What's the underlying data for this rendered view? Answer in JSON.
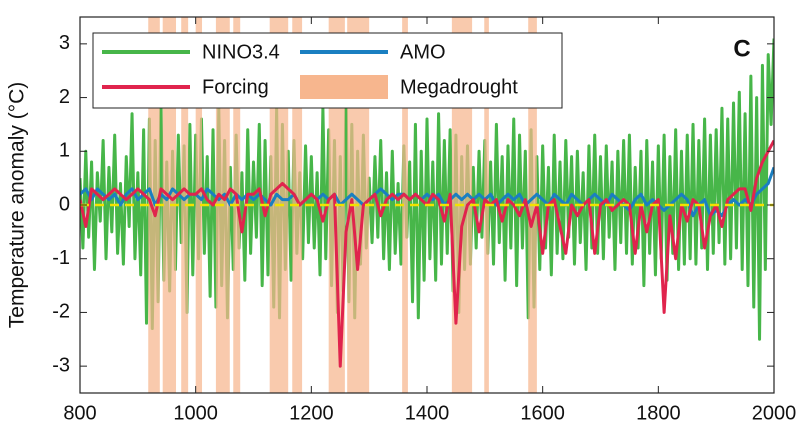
{
  "chart_data": {
    "type": "line",
    "panel_label": "C",
    "ylabel": "Temperature anomaly (°C)",
    "xlim": [
      800,
      2000
    ],
    "xticks": [
      800,
      1000,
      1200,
      1400,
      1600,
      1800,
      2000
    ],
    "ylim": [
      -3.5,
      3.5
    ],
    "yticks": [
      -3,
      -2,
      -1,
      0,
      1,
      2,
      3
    ],
    "hline": {
      "value": 0,
      "color": "#f2e200"
    },
    "shaded_regions": {
      "name": "Megadrought",
      "color": "#f7b68e",
      "spans": [
        [
          918,
          938
        ],
        [
          943,
          966
        ],
        [
          975,
          987
        ],
        [
          1000,
          1011
        ],
        [
          1035,
          1059
        ],
        [
          1065,
          1077
        ],
        [
          1128,
          1160
        ],
        [
          1167,
          1184
        ],
        [
          1230,
          1258
        ],
        [
          1262,
          1300
        ],
        [
          1357,
          1367
        ],
        [
          1443,
          1478
        ],
        [
          1499,
          1507
        ],
        [
          1575,
          1590
        ]
      ]
    },
    "series": [
      {
        "name": "NINO3.4",
        "color": "#47b649",
        "x": [
          800,
          805,
          810,
          815,
          820,
          825,
          830,
          835,
          840,
          845,
          850,
          855,
          860,
          865,
          870,
          875,
          880,
          885,
          890,
          895,
          900,
          905,
          910,
          915,
          920,
          925,
          930,
          935,
          940,
          945,
          950,
          955,
          960,
          965,
          970,
          975,
          980,
          985,
          990,
          995,
          1000,
          1005,
          1010,
          1015,
          1020,
          1025,
          1030,
          1035,
          1040,
          1045,
          1050,
          1055,
          1060,
          1065,
          1070,
          1075,
          1080,
          1085,
          1090,
          1095,
          1100,
          1105,
          1110,
          1115,
          1120,
          1125,
          1130,
          1135,
          1140,
          1145,
          1150,
          1155,
          1160,
          1165,
          1170,
          1175,
          1180,
          1185,
          1190,
          1195,
          1200,
          1205,
          1210,
          1215,
          1220,
          1225,
          1230,
          1235,
          1240,
          1245,
          1250,
          1255,
          1260,
          1265,
          1270,
          1275,
          1280,
          1285,
          1290,
          1295,
          1300,
          1305,
          1310,
          1315,
          1320,
          1325,
          1330,
          1335,
          1340,
          1345,
          1350,
          1355,
          1360,
          1365,
          1370,
          1375,
          1380,
          1385,
          1390,
          1395,
          1400,
          1405,
          1410,
          1415,
          1420,
          1425,
          1430,
          1435,
          1440,
          1445,
          1450,
          1455,
          1460,
          1465,
          1470,
          1475,
          1480,
          1485,
          1490,
          1495,
          1500,
          1505,
          1510,
          1515,
          1520,
          1525,
          1530,
          1535,
          1540,
          1545,
          1550,
          1555,
          1560,
          1565,
          1570,
          1575,
          1580,
          1585,
          1590,
          1595,
          1600,
          1605,
          1610,
          1615,
          1620,
          1625,
          1630,
          1635,
          1640,
          1645,
          1650,
          1655,
          1660,
          1665,
          1670,
          1675,
          1680,
          1685,
          1690,
          1695,
          1700,
          1705,
          1710,
          1715,
          1720,
          1725,
          1730,
          1735,
          1740,
          1745,
          1750,
          1755,
          1760,
          1765,
          1770,
          1775,
          1780,
          1785,
          1790,
          1795,
          1800,
          1805,
          1810,
          1815,
          1820,
          1825,
          1830,
          1835,
          1840,
          1845,
          1850,
          1855,
          1860,
          1865,
          1870,
          1875,
          1880,
          1885,
          1890,
          1895,
          1900,
          1905,
          1910,
          1915,
          1920,
          1925,
          1930,
          1935,
          1940,
          1945,
          1950,
          1955,
          1960,
          1965,
          1970,
          1975,
          1980,
          1985,
          1990,
          1995,
          2000
        ],
        "values": [
          0.5,
          -0.8,
          1.0,
          -0.6,
          0.8,
          -1.2,
          0.6,
          -0.3,
          1.2,
          -1.0,
          0.7,
          -0.5,
          1.3,
          -0.9,
          0.4,
          -1.1,
          0.9,
          -0.4,
          1.7,
          -1.0,
          0.6,
          -1.3,
          1.4,
          -2.2,
          1.6,
          -2.3,
          1.2,
          -1.8,
          1.9,
          -1.4,
          0.8,
          -1.6,
          1.0,
          -1.2,
          1.3,
          -0.7,
          1.1,
          -2.0,
          1.5,
          -1.3,
          1.3,
          -1.0,
          1.6,
          -0.9,
          0.9,
          -1.7,
          1.4,
          -1.9,
          1.8,
          -1.5,
          1.2,
          -2.1,
          0.7,
          -1.2,
          1.3,
          -0.8,
          0.6,
          -1.4,
          1.4,
          -0.9,
          0.8,
          -0.6,
          1.5,
          -1.5,
          1.2,
          -1.3,
          0.9,
          -1.9,
          1.8,
          -2.1,
          1.5,
          -1.2,
          1.0,
          -1.4,
          1.2,
          -0.9,
          0.6,
          -1.0,
          1.1,
          -0.7,
          0.9,
          -0.8,
          0.6,
          -1.3,
          1.8,
          -1.0,
          1.4,
          -1.5,
          1.2,
          -2.0,
          0.9,
          -1.6,
          2.0,
          -1.8,
          1.5,
          -2.1,
          1.0,
          -1.1,
          1.3,
          -0.8,
          0.5,
          -0.7,
          0.9,
          -0.6,
          1.2,
          -1.0,
          0.6,
          -1.2,
          1.0,
          -0.9,
          0.4,
          -1.1,
          1.1,
          -0.6,
          0.8,
          -1.8,
          1.5,
          -2.1,
          1.0,
          -1.4,
          1.6,
          -1.0,
          0.8,
          -1.4,
          1.7,
          -1.1,
          1.2,
          -0.9,
          1.4,
          -1.6,
          1.3,
          -2.0,
          0.9,
          -1.2,
          1.1,
          -1.1,
          0.7,
          -0.8,
          1.0,
          -0.6,
          1.2,
          -0.9,
          0.8,
          -1.1,
          1.5,
          -0.7,
          0.9,
          -1.4,
          1.1,
          -0.8,
          1.6,
          -1.5,
          1.3,
          -0.8,
          1.0,
          -2.1,
          1.4,
          -1.9,
          0.9,
          -1.2,
          1.1,
          -0.8,
          0.7,
          -1.3,
          1.3,
          -0.9,
          0.8,
          -1.0,
          1.2,
          -0.6,
          0.9,
          -1.1,
          1.0,
          -0.7,
          0.6,
          -1.2,
          1.1,
          -0.8,
          1.3,
          -0.9,
          0.9,
          -1.0,
          1.1,
          -0.6,
          0.8,
          -1.2,
          1.0,
          -0.7,
          1.2,
          -0.9,
          1.3,
          -1.1,
          0.7,
          -0.8,
          1.0,
          -1.5,
          1.2,
          -0.9,
          0.8,
          -1.3,
          1.1,
          -1.0,
          1.3,
          -1.4,
          0.9,
          -0.9,
          1.4,
          -1.2,
          1.0,
          -1.1,
          1.3,
          -1.0,
          1.5,
          -1.1,
          1.2,
          -0.8,
          1.6,
          -1.2,
          1.3,
          -0.9,
          1.4,
          -0.7,
          1.8,
          -1.1,
          1.6,
          -1.0,
          1.9,
          -0.8,
          2.1,
          -1.2,
          1.7,
          -1.5,
          2.4,
          -1.9,
          2.0,
          -2.5,
          2.6,
          -1.2,
          2.8,
          1.5,
          3.1
        ]
      },
      {
        "name": "AMO",
        "color": "#1a7fc1",
        "x": [
          800,
          810,
          820,
          830,
          840,
          850,
          860,
          870,
          880,
          890,
          900,
          910,
          920,
          930,
          940,
          950,
          960,
          970,
          980,
          990,
          1000,
          1010,
          1020,
          1030,
          1040,
          1050,
          1060,
          1070,
          1080,
          1090,
          1100,
          1110,
          1120,
          1130,
          1140,
          1150,
          1160,
          1170,
          1180,
          1190,
          1200,
          1210,
          1220,
          1230,
          1240,
          1250,
          1260,
          1270,
          1280,
          1290,
          1300,
          1310,
          1320,
          1330,
          1340,
          1350,
          1360,
          1370,
          1380,
          1390,
          1400,
          1410,
          1420,
          1430,
          1440,
          1450,
          1460,
          1470,
          1480,
          1490,
          1500,
          1510,
          1520,
          1530,
          1540,
          1550,
          1560,
          1570,
          1580,
          1590,
          1600,
          1610,
          1620,
          1630,
          1640,
          1650,
          1660,
          1670,
          1680,
          1690,
          1700,
          1710,
          1720,
          1730,
          1740,
          1750,
          1760,
          1770,
          1780,
          1790,
          1800,
          1810,
          1820,
          1830,
          1840,
          1850,
          1860,
          1870,
          1880,
          1890,
          1900,
          1910,
          1920,
          1930,
          1940,
          1950,
          1960,
          1970,
          1980,
          1990,
          2000
        ],
        "values": [
          0.2,
          0.3,
          0.1,
          0.3,
          0.2,
          0.1,
          0.2,
          0.0,
          0.2,
          0.3,
          0.1,
          0.2,
          0.3,
          0.0,
          0.2,
          0.1,
          0.3,
          0.2,
          0.1,
          0.2,
          0.2,
          0.1,
          0.3,
          0.2,
          0.1,
          0.2,
          0.0,
          0.2,
          0.1,
          0.2,
          0.1,
          0.2,
          0.1,
          0.0,
          0.2,
          0.1,
          0.1,
          0.2,
          0.0,
          0.1,
          0.2,
          0.1,
          0.2,
          0.1,
          0.2,
          0.0,
          0.1,
          0.2,
          0.1,
          0.0,
          0.1,
          0.2,
          0.3,
          0.2,
          0.1,
          0.2,
          0.2,
          0.1,
          0.2,
          0.1,
          0.2,
          0.1,
          0.2,
          0.0,
          0.1,
          0.2,
          0.1,
          0.2,
          0.1,
          0.2,
          0.1,
          0.2,
          0.0,
          0.1,
          0.2,
          0.1,
          0.2,
          0.0,
          0.1,
          0.2,
          0.1,
          0.0,
          0.2,
          0.1,
          0.0,
          0.2,
          0.1,
          0.0,
          0.1,
          0.2,
          0.1,
          0.0,
          0.2,
          0.1,
          0.0,
          -0.1,
          0.1,
          0.2,
          0.0,
          0.1,
          0.0,
          -0.1,
          0.0,
          0.1,
          0.2,
          0.1,
          -0.2,
          0.0,
          0.1,
          -0.2,
          -0.1,
          -0.2,
          0.0,
          0.1,
          0.0,
          0.1,
          0.0,
          0.2,
          0.3,
          0.4,
          0.7
        ]
      },
      {
        "name": "Forcing",
        "color": "#e0244d",
        "x": [
          800,
          810,
          820,
          830,
          840,
          850,
          860,
          870,
          880,
          890,
          900,
          910,
          920,
          930,
          940,
          950,
          960,
          970,
          980,
          990,
          1000,
          1010,
          1020,
          1030,
          1040,
          1050,
          1060,
          1070,
          1080,
          1090,
          1100,
          1110,
          1120,
          1130,
          1140,
          1150,
          1160,
          1170,
          1180,
          1190,
          1200,
          1210,
          1220,
          1230,
          1240,
          1250,
          1260,
          1270,
          1280,
          1290,
          1300,
          1310,
          1320,
          1330,
          1340,
          1350,
          1360,
          1370,
          1380,
          1390,
          1400,
          1410,
          1420,
          1430,
          1440,
          1450,
          1460,
          1470,
          1480,
          1490,
          1500,
          1510,
          1520,
          1530,
          1540,
          1550,
          1560,
          1570,
          1580,
          1590,
          1600,
          1610,
          1620,
          1630,
          1640,
          1650,
          1660,
          1670,
          1680,
          1690,
          1700,
          1710,
          1720,
          1730,
          1740,
          1750,
          1760,
          1770,
          1780,
          1790,
          1800,
          1810,
          1820,
          1830,
          1840,
          1850,
          1860,
          1870,
          1880,
          1890,
          1900,
          1910,
          1920,
          1930,
          1940,
          1950,
          1960,
          1970,
          1980,
          1990,
          2000
        ],
        "values": [
          0.1,
          -0.4,
          0.3,
          0.2,
          0.1,
          0.2,
          0.3,
          0.2,
          0.1,
          0.2,
          0.3,
          0.2,
          0.1,
          -0.2,
          0.3,
          0.2,
          0.1,
          0.2,
          0.3,
          0.2,
          0.2,
          0.3,
          0.1,
          0.0,
          0.2,
          0.1,
          0.3,
          0.2,
          -0.5,
          0.2,
          0.2,
          0.3,
          -0.2,
          0.2,
          0.3,
          0.4,
          0.3,
          0.2,
          0.0,
          0.1,
          0.2,
          0.1,
          -0.3,
          0.1,
          0.2,
          -3.0,
          -0.5,
          0.1,
          -1.2,
          0.0,
          0.1,
          0.2,
          -0.2,
          0.1,
          0.2,
          0.1,
          0.2,
          0.1,
          0.2,
          0.1,
          0.0,
          0.2,
          0.1,
          -0.3,
          0.2,
          -2.2,
          -0.4,
          0.0,
          0.1,
          -0.5,
          0.1,
          0.0,
          0.1,
          -0.3,
          0.1,
          0.0,
          -0.2,
          0.1,
          -0.4,
          0.0,
          -0.9,
          0.0,
          0.1,
          -0.4,
          -0.9,
          0.0,
          -0.2,
          0.0,
          0.1,
          -0.9,
          0.0,
          0.1,
          -0.1,
          0.0,
          0.1,
          0.0,
          -0.9,
          0.0,
          -0.5,
          0.0,
          0.1,
          -2.0,
          -0.2,
          -1.0,
          0.0,
          -0.3,
          0.1,
          0.0,
          -0.8,
          -0.2,
          0.0,
          -0.4,
          0.1,
          0.2,
          0.3,
          0.3,
          -0.1,
          0.5,
          0.8,
          1.0,
          1.2
        ]
      }
    ]
  }
}
